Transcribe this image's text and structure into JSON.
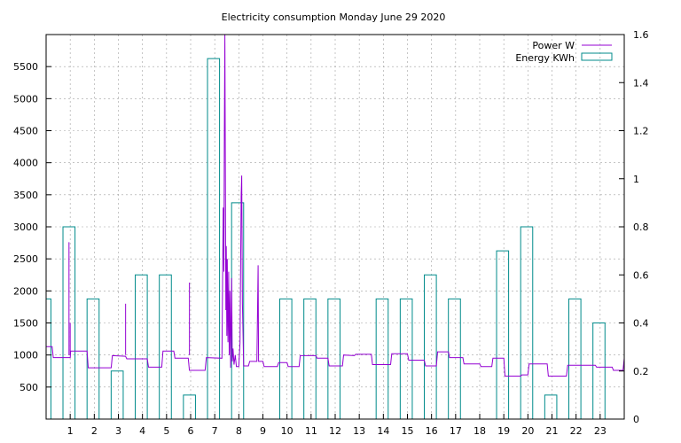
{
  "chart_data": {
    "type": "bar+line",
    "title": "Electricity consumption Monday June 29 2020",
    "x_ticks": [
      "1",
      "2",
      "3",
      "4",
      "5",
      "6",
      "7",
      "8",
      "9",
      "10",
      "11",
      "12",
      "13",
      "14",
      "15",
      "16",
      "17",
      "18",
      "19",
      "20",
      "21",
      "22",
      "23"
    ],
    "xlim": [
      0,
      24
    ],
    "y_left": {
      "ticks": [
        500,
        1000,
        1500,
        2000,
        2500,
        3000,
        3500,
        4000,
        4500,
        5000,
        5500
      ],
      "lim": [
        0,
        6000
      ]
    },
    "y_right": {
      "ticks": [
        "0",
        "0.2",
        "0.4",
        "0.6",
        "0.8",
        "1",
        "1.2",
        "1.4",
        "1.6"
      ],
      "lim": [
        0,
        1.6
      ]
    },
    "grid": true,
    "legend_position": "top-right",
    "series": [
      {
        "name": "Power W",
        "type": "line",
        "axis": "left",
        "color": "#9400d3",
        "points": [
          [
            0,
            1130
          ],
          [
            0.25,
            1130
          ],
          [
            0.3,
            960
          ],
          [
            1,
            960
          ],
          [
            1.02,
            1060
          ],
          [
            1.7,
            1060
          ],
          [
            1.75,
            800
          ],
          [
            2.7,
            800
          ],
          [
            2.75,
            990
          ],
          [
            3.3,
            980
          ],
          [
            3.35,
            940
          ],
          [
            4.2,
            940
          ],
          [
            4.25,
            810
          ],
          [
            4.8,
            810
          ],
          [
            4.85,
            1060
          ],
          [
            5.3,
            1060
          ],
          [
            5.35,
            950
          ],
          [
            5.9,
            950
          ],
          [
            5.95,
            760
          ],
          [
            6.6,
            760
          ],
          [
            6.65,
            960
          ],
          [
            7.3,
            950
          ],
          [
            7.35,
            3300
          ],
          [
            7.38,
            2300
          ],
          [
            7.4,
            4400
          ],
          [
            7.42,
            6000
          ],
          [
            7.44,
            4100
          ],
          [
            7.46,
            1700
          ],
          [
            7.48,
            2700
          ],
          [
            7.5,
            1300
          ],
          [
            7.52,
            2500
          ],
          [
            7.55,
            1200
          ],
          [
            7.58,
            2300
          ],
          [
            7.6,
            1000
          ],
          [
            7.63,
            2000
          ],
          [
            7.66,
            800
          ],
          [
            7.7,
            2200
          ],
          [
            7.73,
            900
          ],
          [
            7.76,
            1100
          ],
          [
            7.8,
            850
          ],
          [
            7.85,
            1000
          ],
          [
            7.9,
            820
          ],
          [
            8.0,
            820
          ],
          [
            8.05,
            1200
          ],
          [
            8.1,
            3500
          ],
          [
            8.12,
            3800
          ],
          [
            8.15,
            1800
          ],
          [
            8.2,
            830
          ],
          [
            8.4,
            830
          ],
          [
            8.45,
            900
          ],
          [
            8.75,
            900
          ],
          [
            8.8,
            2400
          ],
          [
            8.82,
            900
          ],
          [
            9.0,
            900
          ],
          [
            9.05,
            820
          ],
          [
            9.6,
            820
          ],
          [
            9.65,
            880
          ],
          [
            10.0,
            880
          ],
          [
            10.05,
            820
          ],
          [
            10.5,
            820
          ],
          [
            10.55,
            990
          ],
          [
            11.2,
            990
          ],
          [
            11.25,
            950
          ],
          [
            11.7,
            950
          ],
          [
            11.75,
            830
          ],
          [
            12.3,
            830
          ],
          [
            12.35,
            1000
          ],
          [
            12.8,
            990
          ],
          [
            12.85,
            1010
          ],
          [
            13.5,
            1010
          ],
          [
            13.55,
            850
          ],
          [
            14.3,
            850
          ],
          [
            14.35,
            1020
          ],
          [
            15.0,
            1020
          ],
          [
            15.05,
            920
          ],
          [
            15.7,
            920
          ],
          [
            15.75,
            830
          ],
          [
            16.2,
            830
          ],
          [
            16.25,
            1050
          ],
          [
            16.7,
            1050
          ],
          [
            16.75,
            960
          ],
          [
            17.3,
            960
          ],
          [
            17.35,
            860
          ],
          [
            18.0,
            860
          ],
          [
            18.05,
            820
          ],
          [
            18.5,
            820
          ],
          [
            18.55,
            950
          ],
          [
            19.0,
            950
          ],
          [
            19.05,
            670
          ],
          [
            19.7,
            670
          ],
          [
            19.75,
            690
          ],
          [
            20.0,
            690
          ],
          [
            20.05,
            860
          ],
          [
            20.8,
            860
          ],
          [
            20.85,
            670
          ],
          [
            21.6,
            670
          ],
          [
            21.65,
            840
          ],
          [
            22.8,
            840
          ],
          [
            22.85,
            810
          ],
          [
            23.5,
            810
          ],
          [
            23.55,
            760
          ],
          [
            23.95,
            760
          ],
          [
            24,
            950
          ]
        ],
        "spikes": [
          [
            0.95,
            2760
          ],
          [
            1.0,
            1500
          ],
          [
            3.3,
            1800
          ],
          [
            5.95,
            2130
          ]
        ]
      },
      {
        "name": "Energy KWh",
        "type": "bar",
        "axis": "right",
        "color": "#008b8b",
        "bins": [
          {
            "start": -0.3,
            "end": 0.2,
            "value": 0.5
          },
          {
            "start": 0.7,
            "end": 1.2,
            "value": 0.8
          },
          {
            "start": 1.7,
            "end": 2.2,
            "value": 0.5
          },
          {
            "start": 2.7,
            "end": 3.2,
            "value": 0.2
          },
          {
            "start": 3.7,
            "end": 4.2,
            "value": 0.6
          },
          {
            "start": 4.7,
            "end": 5.2,
            "value": 0.6
          },
          {
            "start": 5.7,
            "end": 6.2,
            "value": 0.1
          },
          {
            "start": 6.7,
            "end": 7.2,
            "value": 1.5
          },
          {
            "start": 7.7,
            "end": 8.2,
            "value": 0.9
          },
          {
            "start": 9.7,
            "end": 10.2,
            "value": 0.5
          },
          {
            "start": 10.7,
            "end": 11.2,
            "value": 0.5
          },
          {
            "start": 11.7,
            "end": 12.2,
            "value": 0.5
          },
          {
            "start": 13.7,
            "end": 14.2,
            "value": 0.5
          },
          {
            "start": 14.7,
            "end": 15.2,
            "value": 0.5
          },
          {
            "start": 15.7,
            "end": 16.2,
            "value": 0.6
          },
          {
            "start": 16.7,
            "end": 17.2,
            "value": 0.5
          },
          {
            "start": 18.7,
            "end": 19.2,
            "value": 0.7
          },
          {
            "start": 19.7,
            "end": 20.2,
            "value": 0.8
          },
          {
            "start": 20.7,
            "end": 21.2,
            "value": 0.1
          },
          {
            "start": 21.7,
            "end": 22.2,
            "value": 0.5
          },
          {
            "start": 22.7,
            "end": 23.2,
            "value": 0.4
          }
        ]
      }
    ]
  }
}
